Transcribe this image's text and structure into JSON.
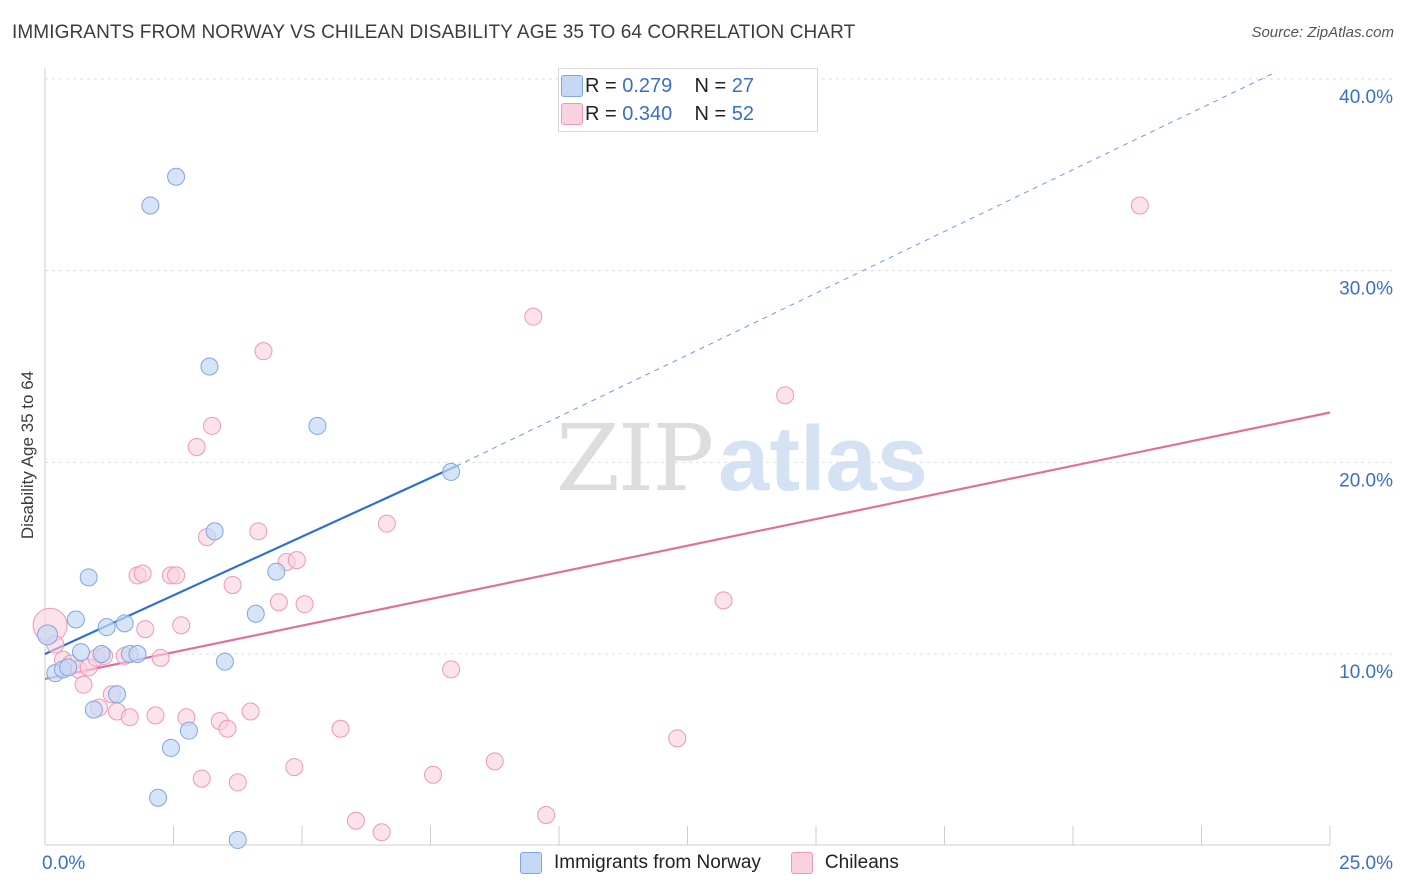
{
  "chart_data": {
    "type": "scatter",
    "title": "IMMIGRANTS FROM NORWAY VS CHILEAN DISABILITY AGE 35 TO 64 CORRELATION CHART",
    "source": "Source: ZipAtlas.com",
    "ylabel": "Disability Age 35 to 64",
    "xlim": [
      0,
      25
    ],
    "ylim": [
      0,
      40
    ],
    "x_tick_labels": [
      "0.0%",
      "25.0%"
    ],
    "y_tick_values": [
      10,
      20,
      30,
      40
    ],
    "y_tick_labels": [
      "10.0%",
      "20.0%",
      "30.0%",
      "40.0%"
    ],
    "watermark": {
      "part1": "ZIP",
      "part2": "atlas"
    },
    "colors": {
      "norway_fill": "#c5d8f5",
      "norway_stroke": "#7fa6e0",
      "norway_line": "#2e6fd4",
      "chile_fill": "#fad1de",
      "chile_stroke": "#eb9ab5",
      "chile_line": "#e0709a",
      "axis_text": "#3a6fc4",
      "grid": "#dddddd"
    },
    "legend": [
      {
        "r_label": "R =",
        "r_value": "0.279",
        "n_label": "N =",
        "n_value": "27"
      },
      {
        "r_label": "R =",
        "r_value": "0.340",
        "n_label": "N =",
        "n_value": "52"
      }
    ],
    "series": [
      {
        "name": "Immigrants from Norway",
        "points": [
          [
            0.05,
            11.0
          ],
          [
            0.2,
            9.0
          ],
          [
            0.35,
            9.2
          ],
          [
            0.45,
            9.3
          ],
          [
            0.6,
            11.8
          ],
          [
            0.7,
            10.1
          ],
          [
            0.85,
            14.0
          ],
          [
            0.95,
            7.1
          ],
          [
            1.1,
            10.0
          ],
          [
            1.2,
            11.4
          ],
          [
            1.4,
            7.9
          ],
          [
            1.55,
            11.6
          ],
          [
            1.65,
            10.0
          ],
          [
            1.8,
            10.0
          ],
          [
            2.05,
            33.4
          ],
          [
            2.2,
            2.5
          ],
          [
            2.45,
            5.1
          ],
          [
            2.55,
            34.9
          ],
          [
            2.8,
            6.0
          ],
          [
            3.2,
            25.0
          ],
          [
            3.3,
            16.4
          ],
          [
            3.5,
            9.6
          ],
          [
            3.75,
            0.3
          ],
          [
            4.1,
            12.1
          ],
          [
            4.5,
            14.3
          ],
          [
            5.3,
            21.9
          ],
          [
            7.9,
            19.5
          ]
        ],
        "trend": {
          "x0": 0,
          "y0": 10.0,
          "x1": 8.0,
          "y1": 19.8,
          "dash_to_x": 23.9,
          "dash_to_y": 40.3
        }
      },
      {
        "name": "Chileans",
        "points": [
          [
            0.1,
            11.5
          ],
          [
            0.2,
            10.5
          ],
          [
            0.35,
            9.7
          ],
          [
            0.5,
            9.5
          ],
          [
            0.65,
            9.2
          ],
          [
            0.75,
            8.4
          ],
          [
            0.85,
            9.3
          ],
          [
            1.0,
            9.8
          ],
          [
            1.05,
            7.2
          ],
          [
            1.15,
            9.9
          ],
          [
            1.3,
            7.9
          ],
          [
            1.4,
            7.0
          ],
          [
            1.55,
            9.9
          ],
          [
            1.65,
            6.7
          ],
          [
            1.8,
            14.1
          ],
          [
            1.9,
            14.2
          ],
          [
            1.95,
            11.3
          ],
          [
            2.15,
            6.8
          ],
          [
            2.25,
            9.8
          ],
          [
            2.45,
            14.1
          ],
          [
            2.55,
            14.1
          ],
          [
            2.65,
            11.5
          ],
          [
            2.75,
            6.7
          ],
          [
            2.95,
            20.8
          ],
          [
            3.05,
            3.5
          ],
          [
            3.15,
            16.1
          ],
          [
            3.25,
            21.9
          ],
          [
            3.4,
            6.5
          ],
          [
            3.55,
            6.1
          ],
          [
            3.65,
            13.6
          ],
          [
            3.75,
            3.3
          ],
          [
            4.0,
            7.0
          ],
          [
            4.15,
            16.4
          ],
          [
            4.25,
            25.8
          ],
          [
            4.55,
            12.7
          ],
          [
            4.7,
            14.8
          ],
          [
            4.85,
            4.1
          ],
          [
            4.9,
            14.9
          ],
          [
            5.05,
            12.6
          ],
          [
            5.75,
            6.1
          ],
          [
            6.05,
            1.3
          ],
          [
            6.55,
            0.7
          ],
          [
            6.65,
            16.8
          ],
          [
            7.55,
            3.7
          ],
          [
            7.9,
            9.2
          ],
          [
            8.75,
            4.4
          ],
          [
            9.5,
            27.6
          ],
          [
            9.75,
            1.6
          ],
          [
            12.3,
            5.6
          ],
          [
            13.2,
            12.8
          ],
          [
            14.4,
            23.5
          ],
          [
            21.3,
            33.4
          ]
        ],
        "trend": {
          "x0": 0,
          "y0": 8.7,
          "x1": 25.0,
          "y1": 22.6
        }
      }
    ]
  }
}
